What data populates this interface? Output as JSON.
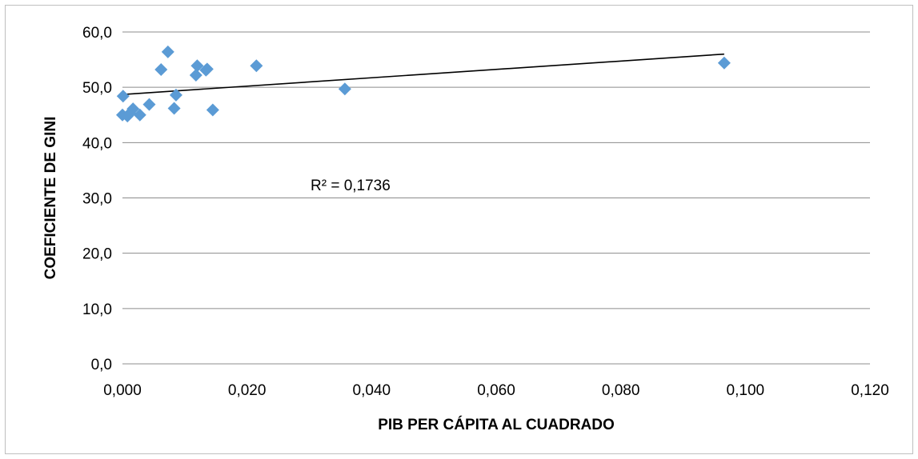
{
  "chart_data": {
    "type": "scatter",
    "title": "",
    "xlabel": "PIB PER CÁPITA AL CUADRADO",
    "ylabel": "COEFICIENTE DE GINI",
    "xlim": [
      0,
      0.12
    ],
    "ylim": [
      0,
      60
    ],
    "x_ticks": [
      "0,000",
      "0,020",
      "0,040",
      "0,060",
      "0,080",
      "0,100",
      "0,120"
    ],
    "y_ticks": [
      "0,0",
      "10,0",
      "20,0",
      "30,0",
      "40,0",
      "50,0",
      "60,0"
    ],
    "grid": "horizontal",
    "legend": "none",
    "marker_color": "#5b9bd5",
    "trendline_color": "#000000",
    "points": [
      {
        "x": 0.0,
        "y": 45.0
      },
      {
        "x": 0.0001,
        "y": 48.4
      },
      {
        "x": 0.0008,
        "y": 44.8
      },
      {
        "x": 0.0012,
        "y": 45.3
      },
      {
        "x": 0.0017,
        "y": 46.1
      },
      {
        "x": 0.0028,
        "y": 45.0
      },
      {
        "x": 0.0043,
        "y": 46.9
      },
      {
        "x": 0.0062,
        "y": 53.2
      },
      {
        "x": 0.0073,
        "y": 56.4
      },
      {
        "x": 0.0083,
        "y": 46.2
      },
      {
        "x": 0.0086,
        "y": 48.6
      },
      {
        "x": 0.0118,
        "y": 52.2
      },
      {
        "x": 0.012,
        "y": 53.9
      },
      {
        "x": 0.0134,
        "y": 53.1
      },
      {
        "x": 0.0136,
        "y": 53.3
      },
      {
        "x": 0.0145,
        "y": 45.9
      },
      {
        "x": 0.0215,
        "y": 53.9
      },
      {
        "x": 0.0357,
        "y": 49.7
      },
      {
        "x": 0.0966,
        "y": 54.4
      }
    ],
    "trendline": {
      "type": "linear",
      "x": [
        0.0,
        0.0966
      ],
      "y": [
        48.7,
        56.0
      ]
    },
    "annotation": "R² = 0,1736"
  }
}
